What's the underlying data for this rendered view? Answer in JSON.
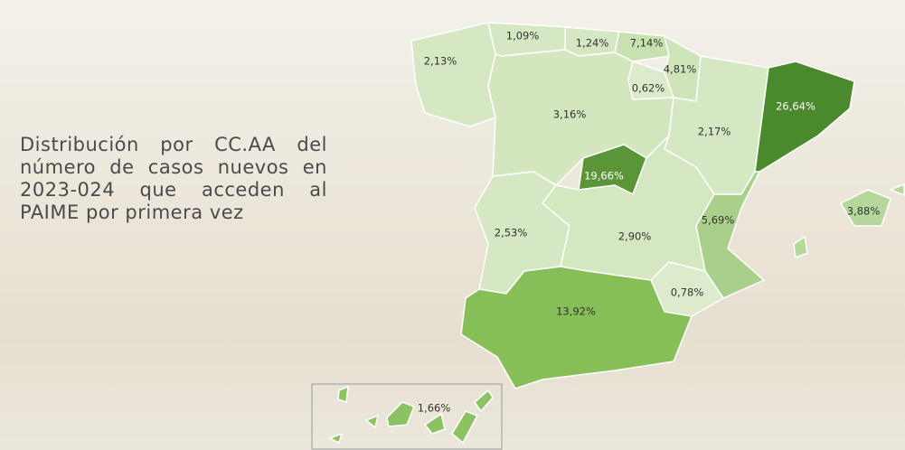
{
  "title": "Distribución por CC.AA del número de casos nuevos en 2023-024 que acceden al PAIME por primera vez",
  "regions": [
    {
      "label": "2,13%",
      "color": "#d6e8c3"
    },
    {
      "label": "1,09%",
      "color": "#d6e8c3"
    },
    {
      "label": "1,24%",
      "color": "#d6e8c3"
    },
    {
      "label": "7,14%",
      "color": "#c9e0b0"
    },
    {
      "label": "4,81%",
      "color": "#d0e4b9"
    },
    {
      "label": "0,62%",
      "color": "#dcebcb"
    },
    {
      "label": "3,16%",
      "color": "#d3e6be"
    },
    {
      "label": "2,17%",
      "color": "#d6e8c3"
    },
    {
      "label": "26,64%",
      "color": "#4b8a2c"
    },
    {
      "label": "19,66%",
      "color": "#5a9637"
    },
    {
      "label": "2,53%",
      "color": "#d6e8c3"
    },
    {
      "label": "2,90%",
      "color": "#d4e7c0"
    },
    {
      "label": "5,69%",
      "color": "#a8d08a"
    },
    {
      "label": "0,78%",
      "color": "#dcebcb"
    },
    {
      "label": "13,92%",
      "color": "#86bf58"
    },
    {
      "label": "3,88%",
      "color": "#b5d79b"
    },
    {
      "label": "1,66%",
      "color": "#8cc262"
    }
  ]
}
